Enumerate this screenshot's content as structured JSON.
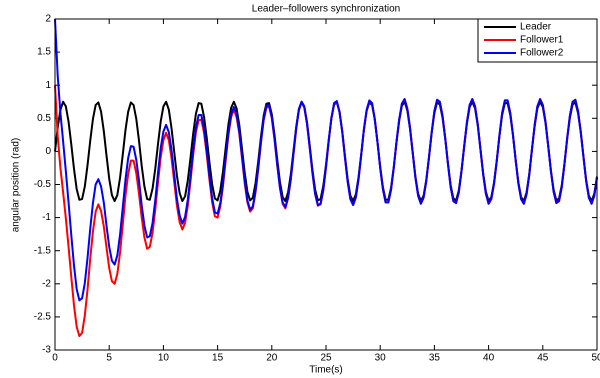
{
  "chart_data": {
    "type": "line",
    "title": "Leader–followers synchronization",
    "xlabel": "Time(s)",
    "ylabel": "angular position (rad)",
    "x": [
      0,
      0.25,
      0.5,
      0.75,
      1,
      1.25,
      1.5,
      1.75,
      2,
      2.25,
      2.5,
      2.75,
      3,
      3.25,
      3.5,
      3.75,
      4,
      4.25,
      4.5,
      4.75,
      5,
      5.25,
      5.5,
      5.75,
      6,
      6.25,
      6.5,
      6.75,
      7,
      7.25,
      7.5,
      7.75,
      8,
      8.25,
      8.5,
      8.75,
      9,
      9.25,
      9.5,
      9.75,
      10,
      10.25,
      10.5,
      10.75,
      11,
      11.25,
      11.5,
      11.75,
      12,
      12.25,
      12.5,
      12.75,
      13,
      13.25,
      13.5,
      13.75,
      14,
      14.25,
      14.5,
      14.75,
      15,
      15.25,
      15.5,
      15.75,
      16,
      16.25,
      16.5,
      16.75,
      17,
      17.25,
      17.5,
      17.75,
      18,
      18.25,
      18.5,
      18.75,
      19,
      19.25,
      19.5,
      19.75,
      20,
      20.25,
      20.5,
      20.75,
      21,
      21.25,
      21.5,
      21.75,
      22,
      22.25,
      22.5,
      22.75,
      23,
      23.25,
      23.5,
      23.75,
      24,
      24.25,
      24.5,
      24.75,
      25,
      25.25,
      25.5,
      25.75,
      26,
      26.25,
      26.5,
      26.75,
      27,
      27.25,
      27.5,
      27.75,
      28,
      28.25,
      28.5,
      28.75,
      29,
      29.25,
      29.5,
      29.75,
      30,
      30.25,
      30.5,
      30.75,
      31,
      31.25,
      31.5,
      31.75,
      32,
      32.25,
      32.5,
      32.75,
      33,
      33.25,
      33.5,
      33.75,
      34,
      34.25,
      34.5,
      34.75,
      35,
      35.25,
      35.5,
      35.75,
      36,
      36.25,
      36.5,
      36.75,
      37,
      37.25,
      37.5,
      37.75,
      38,
      38.25,
      38.5,
      38.75,
      39,
      39.25,
      39.5,
      39.75,
      40,
      40.25,
      40.5,
      40.75,
      41,
      41.25,
      41.5,
      41.75,
      42,
      42.25,
      42.5,
      42.75,
      43,
      43.25,
      43.5,
      43.75,
      44,
      44.25,
      44.5,
      44.75,
      45,
      45.25,
      45.5,
      45.75,
      46,
      46.25,
      46.5,
      46.75,
      47,
      47.25,
      47.5,
      47.75,
      48,
      48.25,
      48.5,
      48.75,
      49,
      49.25,
      49.5,
      49.75,
      50
    ],
    "series": [
      {
        "name": "Leader",
        "color": "#000000",
        "values": [
          0,
          0.36,
          0.63,
          0.75,
          0.68,
          0.45,
          0.11,
          -0.26,
          -0.57,
          -0.73,
          -0.72,
          -0.53,
          -0.21,
          0.16,
          0.49,
          0.7,
          0.74,
          0.6,
          0.31,
          -0.06,
          -0.41,
          -0.66,
          -0.75,
          -0.66,
          -0.4,
          -0.05,
          0.32,
          0.6,
          0.74,
          0.7,
          0.49,
          0.16,
          -0.22,
          -0.53,
          -0.72,
          -0.73,
          -0.56,
          -0.26,
          0.11,
          0.45,
          0.68,
          0.75,
          0.63,
          0.35,
          -0.01,
          -0.37,
          -0.63,
          -0.75,
          -0.68,
          -0.44,
          -0.1,
          0.27,
          0.57,
          0.73,
          0.72,
          0.52,
          0.2,
          -0.17,
          -0.5,
          -0.71,
          -0.74,
          -0.59,
          -0.3,
          0.06,
          0.41,
          0.66,
          0.75,
          0.65,
          0.4,
          0.04,
          -0.32,
          -0.61,
          -0.74,
          -0.7,
          -0.48,
          -0.15,
          0.22,
          0.54,
          0.72,
          0.73,
          0.56,
          0.25,
          -0.12,
          -0.46,
          -0.69,
          -0.75,
          -0.62,
          -0.35,
          0.01,
          0.37,
          0.64,
          0.75,
          0.68,
          0.44,
          0.09,
          -0.28,
          -0.58,
          -0.74,
          -0.72,
          -0.52,
          -0.2,
          0.17,
          0.5,
          0.71,
          0.74,
          0.59,
          0.3,
          -0.07,
          -0.42,
          -0.67,
          -0.75,
          -0.65,
          -0.39,
          -0.04,
          0.33,
          0.61,
          0.74,
          0.7,
          0.48,
          0.14,
          -0.23,
          -0.54,
          -0.73,
          -0.73,
          -0.55,
          -0.24,
          0.13,
          0.46,
          0.69,
          0.75,
          0.62,
          0.34,
          -0.02,
          -0.38,
          -0.64,
          -0.75,
          -0.67,
          -0.43,
          -0.09,
          0.28,
          0.58,
          0.74,
          0.71,
          0.51,
          0.19,
          -0.18,
          -0.51,
          -0.71,
          -0.74,
          -0.59,
          -0.29,
          0.08,
          0.42,
          0.67,
          0.75,
          0.65,
          0.39,
          0.03,
          -0.33,
          -0.61,
          -0.75,
          -0.69,
          -0.47,
          -0.14,
          0.23,
          0.55,
          0.73,
          0.73,
          0.55,
          0.24,
          -0.13,
          -0.47,
          -0.69,
          -0.75,
          -0.62,
          -0.34,
          0.03,
          0.38,
          0.65,
          0.75,
          0.67,
          0.43,
          0.08,
          -0.29,
          -0.58,
          -0.74,
          -0.71,
          -0.51,
          -0.18,
          0.19,
          0.51,
          0.71,
          0.74,
          0.58,
          0.29,
          -0.08,
          -0.43,
          -0.67,
          -0.75,
          -0.64,
          -0.38
        ]
      },
      {
        "name": "Follower1",
        "color": "#ff0000",
        "values": [
          1,
          0.23,
          -0.25,
          -0.62,
          -1.01,
          -1.44,
          -1.89,
          -2.32,
          -2.65,
          -2.79,
          -2.74,
          -2.48,
          -2.09,
          -1.62,
          -1.21,
          -0.91,
          -0.8,
          -0.9,
          -1.13,
          -1.45,
          -1.76,
          -1.96,
          -2,
          -1.85,
          -1.53,
          -1.11,
          -0.67,
          -0.34,
          -0.14,
          -0.14,
          -0.33,
          -0.64,
          -1,
          -1.3,
          -1.47,
          -1.44,
          -1.23,
          -0.88,
          -0.47,
          -0.09,
          0.17,
          0.28,
          0.17,
          -0.1,
          -0.46,
          -0.82,
          -1.07,
          -1.18,
          -1.08,
          -0.82,
          -0.45,
          -0.05,
          0.29,
          0.47,
          0.48,
          0.28,
          -0.05,
          -0.43,
          -0.77,
          -0.98,
          -1,
          -0.83,
          -0.52,
          -0.13,
          0.25,
          0.52,
          0.63,
          0.52,
          0.27,
          -0.1,
          -0.48,
          -0.77,
          -0.91,
          -0.86,
          -0.62,
          -0.27,
          0.13,
          0.47,
          0.66,
          0.68,
          0.5,
          0.18,
          -0.21,
          -0.55,
          -0.79,
          -0.86,
          -0.71,
          -0.43,
          -0.05,
          0.33,
          0.62,
          0.74,
          0.66,
          0.41,
          0.05,
          -0.33,
          -0.65,
          -0.82,
          -0.8,
          -0.59,
          -0.24,
          0.15,
          0.5,
          0.72,
          0.75,
          0.59,
          0.29,
          -0.1,
          -0.46,
          -0.72,
          -0.81,
          -0.7,
          -0.43,
          -0.06,
          0.33,
          0.62,
          0.76,
          0.72,
          0.49,
          0.14,
          -0.25,
          -0.57,
          -0.77,
          -0.77,
          -0.58,
          -0.25,
          0.14,
          0.48,
          0.72,
          0.79,
          0.65,
          0.36,
          -0.02,
          -0.4,
          -0.67,
          -0.79,
          -0.7,
          -0.45,
          -0.09,
          0.29,
          0.61,
          0.78,
          0.75,
          0.54,
          0.2,
          -0.19,
          -0.54,
          -0.75,
          -0.78,
          -0.62,
          -0.3,
          0.08,
          0.44,
          0.7,
          0.79,
          0.68,
          0.41,
          0.03,
          -0.35,
          -0.64,
          -0.79,
          -0.72,
          -0.49,
          -0.15,
          0.24,
          0.58,
          0.77,
          0.77,
          0.58,
          0.25,
          -0.14,
          -0.49,
          -0.72,
          -0.79,
          -0.65,
          -0.36,
          0.03,
          0.4,
          0.68,
          0.79,
          0.7,
          0.45,
          0.08,
          -0.3,
          -0.61,
          -0.78,
          -0.75,
          -0.54,
          -0.19,
          0.2,
          0.54,
          0.75,
          0.78,
          0.61,
          0.3,
          -0.08,
          -0.45,
          -0.7,
          -0.79,
          -0.67,
          -0.4
        ]
      },
      {
        "name": "Follower2",
        "color": "#0000ff",
        "values": [
          2,
          1.14,
          0.58,
          0.15,
          -0.3,
          -0.77,
          -1.26,
          -1.72,
          -2.08,
          -2.25,
          -2.22,
          -1.99,
          -1.61,
          -1.17,
          -0.78,
          -0.5,
          -0.42,
          -0.53,
          -0.77,
          -1.12,
          -1.44,
          -1.65,
          -1.71,
          -1.57,
          -1.26,
          -0.85,
          -0.43,
          -0.1,
          0.08,
          0.07,
          -0.13,
          -0.44,
          -0.82,
          -1.12,
          -1.3,
          -1.28,
          -1.08,
          -0.74,
          -0.33,
          0.05,
          0.3,
          0.4,
          0.29,
          0.02,
          -0.35,
          -0.72,
          -0.97,
          -1.09,
          -0.99,
          -0.73,
          -0.37,
          0.03,
          0.36,
          0.55,
          0.55,
          0.34,
          0.01,
          -0.37,
          -0.71,
          -0.92,
          -0.94,
          -0.78,
          -0.47,
          -0.08,
          0.29,
          0.56,
          0.67,
          0.56,
          0.31,
          -0.07,
          -0.44,
          -0.74,
          -0.88,
          -0.83,
          -0.59,
          -0.24,
          0.15,
          0.49,
          0.69,
          0.7,
          0.52,
          0.2,
          -0.19,
          -0.54,
          -0.77,
          -0.84,
          -0.7,
          -0.42,
          -0.03,
          0.35,
          0.63,
          0.75,
          0.67,
          0.42,
          0.06,
          -0.32,
          -0.64,
          -0.81,
          -0.79,
          -0.58,
          -0.24,
          0.16,
          0.51,
          0.73,
          0.76,
          0.6,
          0.3,
          -0.09,
          -0.46,
          -0.72,
          -0.81,
          -0.69,
          -0.42,
          -0.05,
          0.34,
          0.63,
          0.77,
          0.73,
          0.49,
          0.14,
          -0.25,
          -0.57,
          -0.77,
          -0.77,
          -0.58,
          -0.25,
          0.14,
          0.48,
          0.72,
          0.79,
          0.65,
          0.36,
          -0.02,
          -0.4,
          -0.67,
          -0.79,
          -0.7,
          -0.45,
          -0.09,
          0.29,
          0.61,
          0.78,
          0.75,
          0.54,
          0.2,
          -0.19,
          -0.54,
          -0.75,
          -0.78,
          -0.62,
          -0.3,
          0.08,
          0.44,
          0.7,
          0.79,
          0.68,
          0.41,
          0.03,
          -0.35,
          -0.64,
          -0.79,
          -0.72,
          -0.49,
          -0.15,
          0.24,
          0.58,
          0.77,
          0.77,
          0.58,
          0.25,
          -0.14,
          -0.49,
          -0.72,
          -0.79,
          -0.65,
          -0.36,
          0.03,
          0.4,
          0.68,
          0.79,
          0.7,
          0.45,
          0.08,
          -0.3,
          -0.61,
          -0.78,
          -0.75,
          -0.54,
          -0.19,
          0.2,
          0.54,
          0.75,
          0.78,
          0.61,
          0.3,
          -0.08,
          -0.45,
          -0.7,
          -0.79,
          -0.67,
          -0.4
        ]
      }
    ],
    "xlim": [
      0,
      50
    ],
    "xticks": [
      0,
      5,
      10,
      15,
      20,
      25,
      30,
      35,
      40,
      45,
      50
    ],
    "ylim": [
      -3,
      2
    ],
    "yticks": [
      -3,
      -2.5,
      -2,
      -1.5,
      -1,
      -0.5,
      0,
      0.5,
      1,
      1.5,
      2
    ],
    "grid": false,
    "legend": "upper right"
  }
}
